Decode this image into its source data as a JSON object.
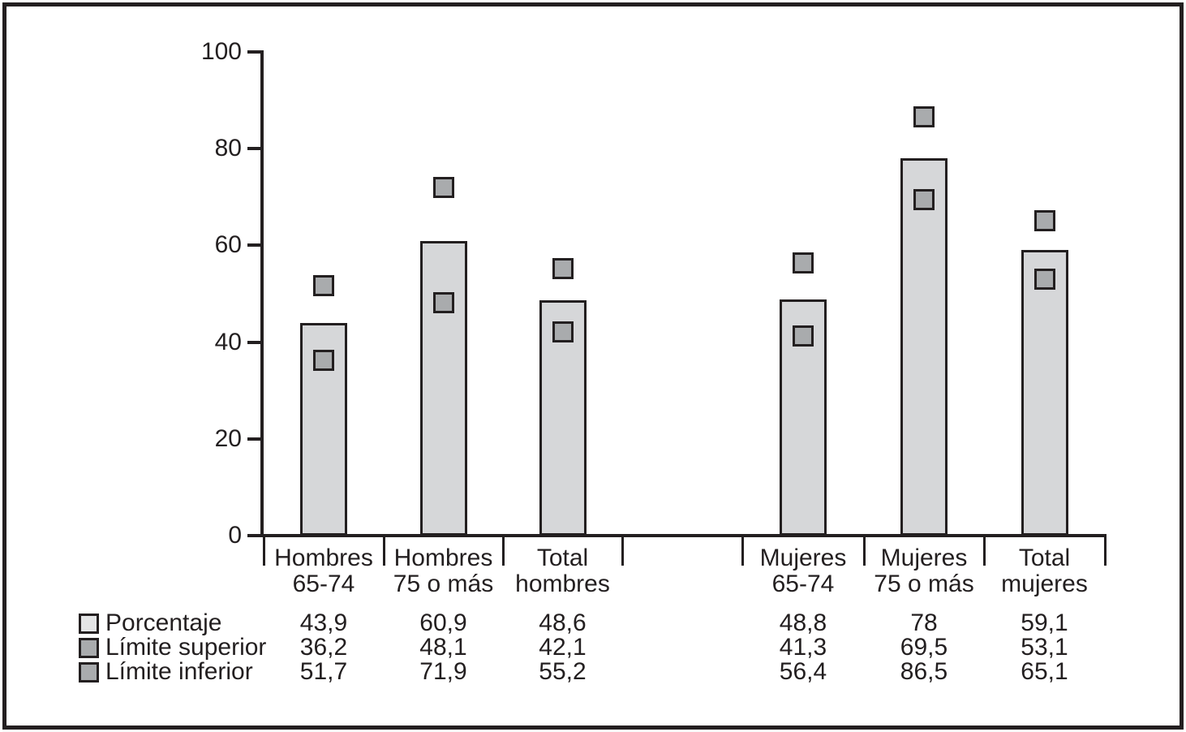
{
  "figure": {
    "background": "#ffffff",
    "border_color": "#231f20",
    "text_color": "#231f20"
  },
  "chart_data": {
    "type": "bar",
    "title": "",
    "xlabel": "",
    "ylabel": "",
    "ylim": [
      0,
      100
    ],
    "yticks": [
      "100",
      "80",
      "60",
      "40",
      "20",
      "0"
    ],
    "ytick_values": [
      100,
      80,
      60,
      40,
      20,
      0
    ],
    "grid": false,
    "legend_position": "bottom-table",
    "categories": [
      "Hombres\n65-74",
      "Hombres\n75 o más",
      "Total\nhombres",
      "Mujeres\n65-74",
      "Mujeres\n75 o más",
      "Total\nmujeres"
    ],
    "series": [
      {
        "name": "Porcentaje",
        "render": "bar",
        "color": "#d6d7d9",
        "values": [
          43.9,
          60.9,
          48.6,
          48.8,
          78,
          59.1
        ]
      },
      {
        "name": "Límite superior",
        "render": "square-marker",
        "color": "#a9abad",
        "values": [
          36.2,
          48.1,
          42.1,
          41.3,
          69.5,
          53.1
        ]
      },
      {
        "name": "Límite inferior",
        "render": "square-marker",
        "color": "#a9abad",
        "values": [
          51.7,
          71.9,
          55.2,
          56.4,
          86.5,
          65.1
        ]
      }
    ],
    "table": {
      "rows": [
        {
          "label": "Porcentaje",
          "swatch_color": "#e4e5e6",
          "values": [
            "43,9",
            "60,9",
            "48,6",
            "48,8",
            "78",
            "59,1"
          ]
        },
        {
          "label": "Límite superior",
          "swatch_color": "#a9abad",
          "values": [
            "36,2",
            "48,1",
            "42,1",
            "41,3",
            "69,5",
            "53,1"
          ]
        },
        {
          "label": "Límite inferior",
          "swatch_color": "#a9abad",
          "values": [
            "51,7",
            "71,9",
            "55,2",
            "56,4",
            "86,5",
            "65,1"
          ]
        }
      ]
    }
  }
}
